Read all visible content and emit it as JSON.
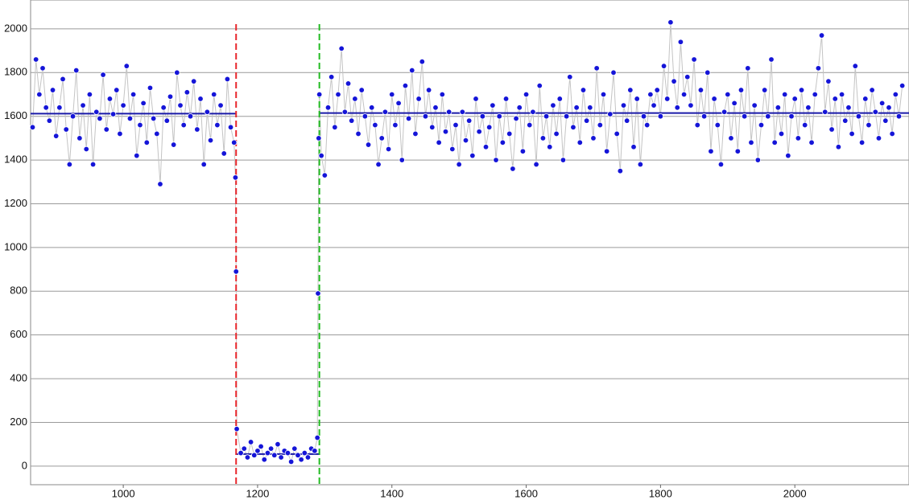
{
  "chart_data": {
    "type": "line",
    "xlim": [
      862,
      2170
    ],
    "ylim": [
      -85,
      2132
    ],
    "xticks": [
      1000,
      1200,
      1400,
      1600,
      1800,
      2000
    ],
    "yticks": [
      0,
      200,
      400,
      600,
      800,
      1000,
      1200,
      1400,
      1600,
      1800,
      2000
    ],
    "grid": true,
    "series": [
      {
        "color": "#1515d8",
        "line_color": "#c4c4c4",
        "x": [
          865,
          870,
          875,
          880,
          885,
          890,
          895,
          900,
          905,
          910,
          915,
          920,
          925,
          930,
          935,
          940,
          945,
          950,
          955,
          960,
          965,
          970,
          975,
          980,
          985,
          990,
          995,
          1000,
          1005,
          1010,
          1015,
          1020,
          1025,
          1030,
          1035,
          1040,
          1045,
          1050,
          1055,
          1060,
          1065,
          1070,
          1075,
          1080,
          1085,
          1090,
          1095,
          1100,
          1105,
          1110,
          1115,
          1120,
          1125,
          1130,
          1135,
          1140,
          1145,
          1150,
          1155,
          1160,
          1165,
          1167,
          1168,
          1169,
          1175,
          1180,
          1185,
          1190,
          1195,
          1200,
          1205,
          1210,
          1215,
          1220,
          1225,
          1230,
          1235,
          1240,
          1245,
          1250,
          1255,
          1260,
          1265,
          1270,
          1275,
          1280,
          1285,
          1289,
          1290,
          1291,
          1292,
          1295,
          1300,
          1305,
          1310,
          1315,
          1320,
          1325,
          1330,
          1335,
          1340,
          1345,
          1350,
          1355,
          1360,
          1365,
          1370,
          1375,
          1380,
          1385,
          1390,
          1395,
          1400,
          1405,
          1410,
          1415,
          1420,
          1425,
          1430,
          1435,
          1440,
          1445,
          1450,
          1455,
          1460,
          1465,
          1470,
          1475,
          1480,
          1485,
          1490,
          1495,
          1500,
          1505,
          1510,
          1515,
          1520,
          1525,
          1530,
          1535,
          1540,
          1545,
          1550,
          1555,
          1560,
          1565,
          1570,
          1575,
          1580,
          1585,
          1590,
          1595,
          1600,
          1605,
          1610,
          1615,
          1620,
          1625,
          1630,
          1635,
          1640,
          1645,
          1650,
          1655,
          1660,
          1665,
          1670,
          1675,
          1680,
          1685,
          1690,
          1695,
          1700,
          1705,
          1710,
          1715,
          1720,
          1725,
          1730,
          1735,
          1740,
          1745,
          1750,
          1755,
          1760,
          1765,
          1770,
          1775,
          1780,
          1785,
          1790,
          1795,
          1800,
          1805,
          1810,
          1815,
          1820,
          1825,
          1830,
          1835,
          1840,
          1845,
          1850,
          1855,
          1860,
          1865,
          1870,
          1875,
          1880,
          1885,
          1890,
          1895,
          1900,
          1905,
          1910,
          1915,
          1920,
          1925,
          1930,
          1935,
          1940,
          1945,
          1950,
          1955,
          1960,
          1965,
          1970,
          1975,
          1980,
          1985,
          1990,
          1995,
          2000,
          2005,
          2010,
          2015,
          2020,
          2025,
          2030,
          2035,
          2040,
          2045,
          2050,
          2055,
          2060,
          2065,
          2070,
          2075,
          2080,
          2085,
          2090,
          2095,
          2100,
          2105,
          2110,
          2115,
          2120,
          2125,
          2130,
          2135,
          2140,
          2145,
          2150,
          2155,
          2160
        ],
        "values": [
          1550,
          1860,
          1700,
          1820,
          1640,
          1580,
          1720,
          1510,
          1640,
          1770,
          1540,
          1380,
          1600,
          1810,
          1500,
          1650,
          1450,
          1700,
          1380,
          1620,
          1590,
          1790,
          1540,
          1680,
          1610,
          1720,
          1520,
          1650,
          1830,
          1590,
          1700,
          1420,
          1560,
          1660,
          1480,
          1730,
          1590,
          1520,
          1290,
          1640,
          1580,
          1690,
          1470,
          1800,
          1650,
          1560,
          1710,
          1600,
          1760,
          1540,
          1680,
          1380,
          1620,
          1490,
          1700,
          1560,
          1650,
          1430,
          1770,
          1550,
          1480,
          1320,
          890,
          170,
          60,
          80,
          40,
          110,
          50,
          70,
          90,
          30,
          60,
          80,
          50,
          100,
          40,
          70,
          60,
          20,
          80,
          50,
          30,
          60,
          40,
          80,
          70,
          130,
          790,
          1500,
          1700,
          1420,
          1330,
          1640,
          1780,
          1550,
          1700,
          1910,
          1620,
          1750,
          1580,
          1680,
          1520,
          1720,
          1600,
          1470,
          1640,
          1560,
          1380,
          1500,
          1620,
          1450,
          1700,
          1560,
          1660,
          1400,
          1740,
          1590,
          1810,
          1520,
          1680,
          1850,
          1600,
          1720,
          1550,
          1640,
          1480,
          1700,
          1530,
          1620,
          1450,
          1560,
          1380,
          1620,
          1490,
          1580,
          1420,
          1680,
          1530,
          1600,
          1460,
          1550,
          1650,
          1400,
          1600,
          1480,
          1680,
          1520,
          1360,
          1590,
          1640,
          1440,
          1700,
          1560,
          1620,
          1380,
          1740,
          1500,
          1600,
          1460,
          1650,
          1520,
          1680,
          1400,
          1600,
          1780,
          1550,
          1640,
          1480,
          1720,
          1580,
          1640,
          1500,
          1820,
          1560,
          1700,
          1440,
          1610,
          1800,
          1520,
          1350,
          1650,
          1580,
          1720,
          1460,
          1680,
          1380,
          1600,
          1560,
          1700,
          1650,
          1720,
          1600,
          1830,
          1680,
          2030,
          1760,
          1640,
          1940,
          1700,
          1780,
          1650,
          1860,
          1560,
          1720,
          1600,
          1800,
          1440,
          1680,
          1560,
          1380,
          1620,
          1700,
          1500,
          1660,
          1440,
          1720,
          1600,
          1820,
          1480,
          1650,
          1400,
          1560,
          1720,
          1600,
          1860,
          1480,
          1640,
          1520,
          1700,
          1420,
          1600,
          1680,
          1500,
          1720,
          1560,
          1640,
          1480,
          1700,
          1820,
          1970,
          1620,
          1760,
          1540,
          1680,
          1460,
          1700,
          1580,
          1640,
          1520,
          1830,
          1600,
          1480,
          1680,
          1560,
          1720,
          1620,
          1500,
          1660,
          1580,
          1640,
          1520,
          1700,
          1600,
          1740
        ]
      }
    ],
    "mean_color": "#1a1aa8",
    "mean_lines": [
      {
        "x": [
          862,
          1168
        ],
        "y": 1612
      },
      {
        "x": [
          1168,
          1292
        ],
        "y": 55
      },
      {
        "x": [
          1292,
          2170
        ],
        "y": 1615
      }
    ],
    "vlines": [
      {
        "x": 1168,
        "color": "#e8262b"
      },
      {
        "x": 1292,
        "color": "#22bb22"
      }
    ]
  }
}
